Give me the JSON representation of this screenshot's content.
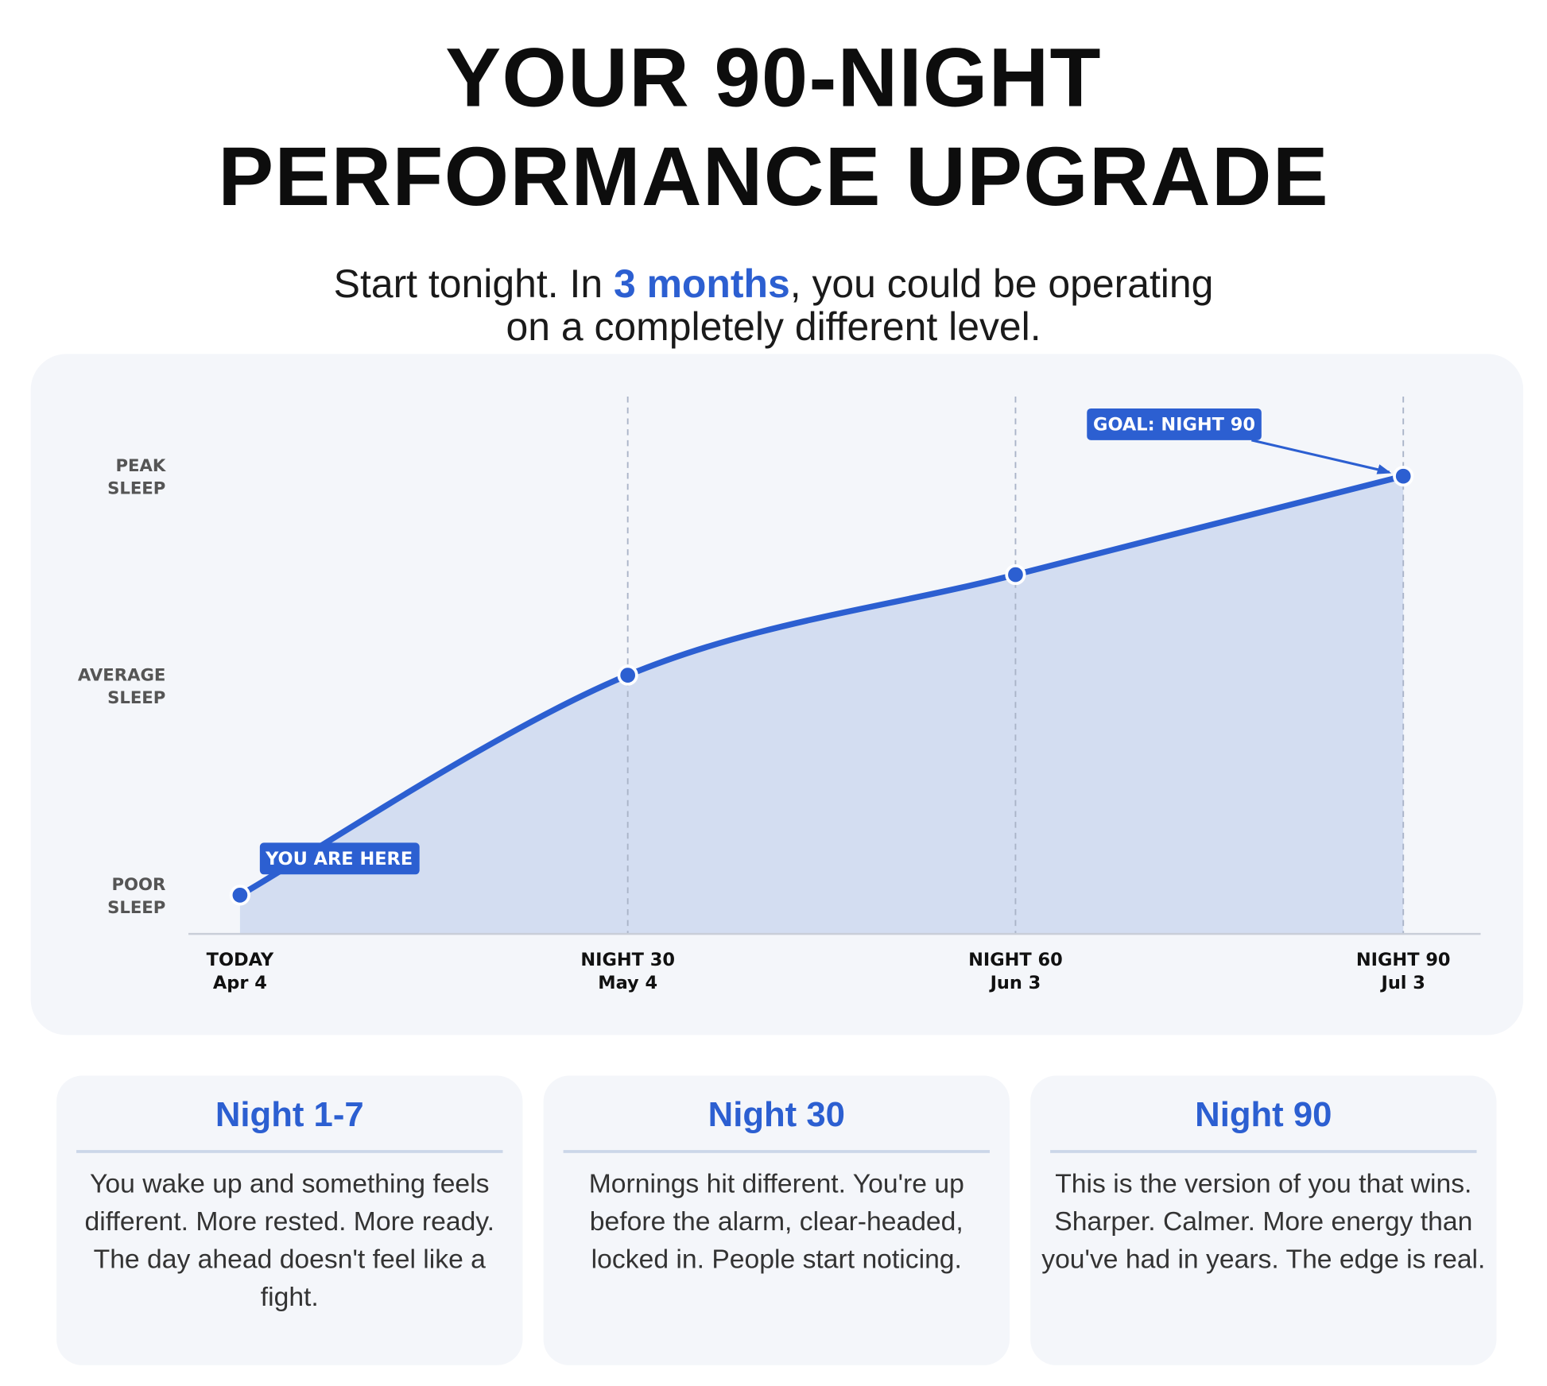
{
  "header": {
    "title_line1": "YOUR 90-NIGHT",
    "title_line2": "PERFORMANCE UPGRADE",
    "subtitle_before": "Start tonight. In ",
    "subtitle_highlight": "3 months",
    "subtitle_after": ", you could be operating",
    "subtitle_line2": "on a completely different level."
  },
  "colors": {
    "accent": "#2c5fd1",
    "fill": "#d3ddf1",
    "card_bg": "#f4f6fa"
  },
  "chart_data": {
    "type": "area",
    "x": [
      0,
      30,
      60,
      90
    ],
    "x_tick_labels": [
      [
        "TODAY",
        "Apr 4"
      ],
      [
        "NIGHT 30",
        "May 4"
      ],
      [
        "NIGHT 60",
        "Jun 3"
      ],
      [
        "NIGHT 90",
        "Jul 3"
      ]
    ],
    "values": [
      1.0,
      2.05,
      2.53,
      3.0
    ],
    "y_ticks": [
      {
        "value": 1,
        "label": [
          "POOR",
          "SLEEP"
        ]
      },
      {
        "value": 2,
        "label": [
          "AVERAGE",
          "SLEEP"
        ]
      },
      {
        "value": 3,
        "label": [
          "PEAK",
          "SLEEP"
        ]
      }
    ],
    "xlim": [
      0,
      90
    ],
    "ylim": [
      0.815,
      3.38
    ],
    "grid": "vertical dashed at milestones",
    "annotations": [
      {
        "text": "YOU ARE HERE",
        "at": 0
      },
      {
        "text": "GOAL: NIGHT 90",
        "at": 90
      }
    ]
  },
  "milestones": [
    {
      "title": "Night 1-7",
      "text": "You wake up and something feels different. More rested. More ready. The day ahead doesn't feel like a fight."
    },
    {
      "title": "Night 30",
      "text": "Mornings hit different. You're up before the alarm, clear-headed, locked in. People start noticing."
    },
    {
      "title": "Night 90",
      "text": "This is the version of you that wins. Sharper. Calmer. More energy than you've had in years. The edge is real."
    }
  ]
}
